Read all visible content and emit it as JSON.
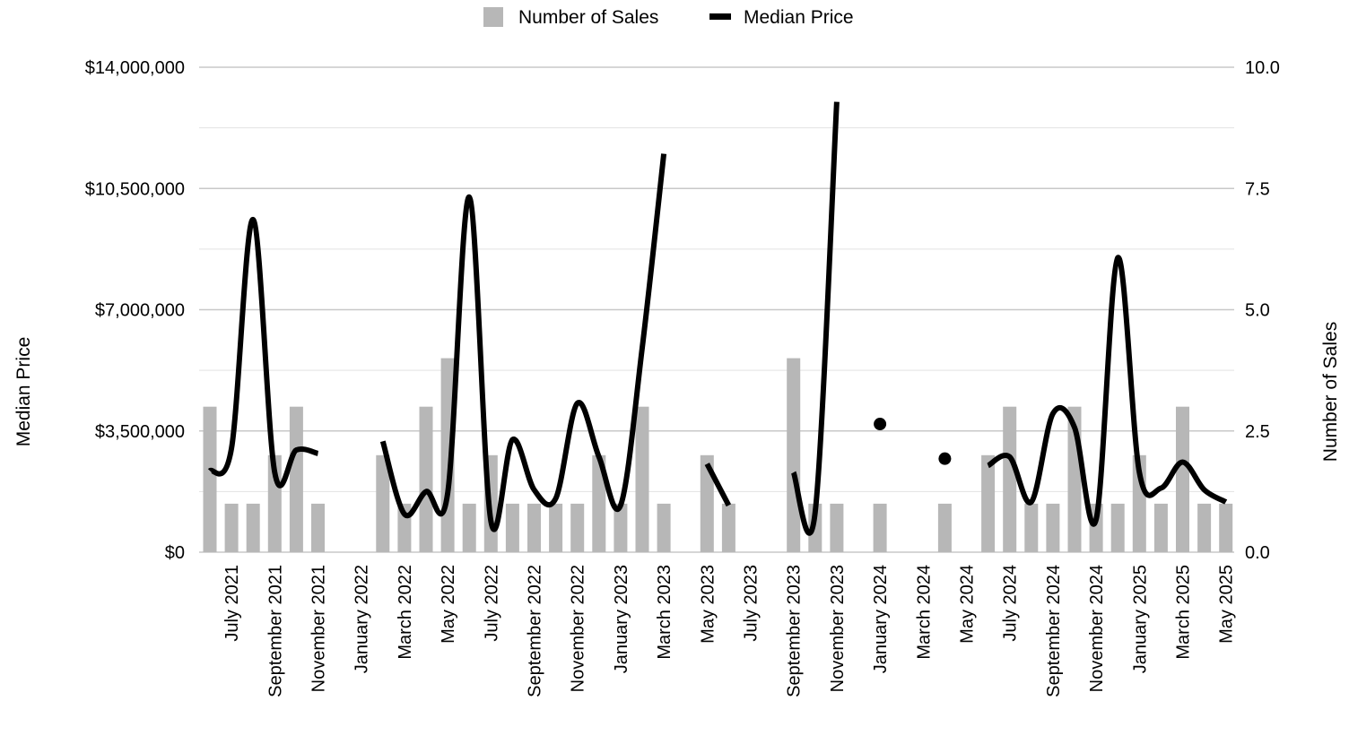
{
  "chart_data": {
    "type": "bar",
    "legend": {
      "placement": "top-center",
      "items": [
        {
          "label": "Number of Sales",
          "symbol": "square",
          "color": "#b7b7b7"
        },
        {
          "label": "Median Price",
          "symbol": "line",
          "color": "#000000"
        }
      ]
    },
    "y_left": {
      "label": "Median Price",
      "ylim": [
        0,
        14000000
      ],
      "tick_labels": [
        "$0",
        "$3,500,000",
        "$7,000,000",
        "$10,500,000",
        "$14,000,000"
      ]
    },
    "y_right": {
      "label": "Number of Sales",
      "ylim": [
        0,
        10
      ],
      "tick_labels": [
        "0.0",
        "2.5",
        "5.0",
        "7.5",
        "10.0"
      ]
    },
    "grid": true,
    "x_tick_labels": [
      "July  2021",
      "September  2021",
      "November 2021",
      "January 2022",
      "March 2022",
      "May 2022",
      "July 2022",
      "September  2022",
      "November 2022",
      "January 2023",
      "March 2023",
      "May 2023",
      "July 2023",
      "September 2023",
      "November 2023",
      "January 2024",
      "March 2024",
      "May 2024",
      "July 2024",
      "September 2024",
      "November 2024",
      "January 2025",
      "March 2025",
      "May 2025"
    ],
    "months": [
      "2021-06",
      "2021-07",
      "2021-08",
      "2021-09",
      "2021-10",
      "2021-11",
      "2021-12",
      "2022-01",
      "2022-02",
      "2022-03",
      "2022-04",
      "2022-05",
      "2022-06",
      "2022-07",
      "2022-08",
      "2022-09",
      "2022-10",
      "2022-11",
      "2022-12",
      "2023-01",
      "2023-02",
      "2023-03",
      "2023-04",
      "2023-05",
      "2023-06",
      "2023-07",
      "2023-08",
      "2023-09",
      "2023-10",
      "2023-11",
      "2023-12",
      "2024-01",
      "2024-02",
      "2024-03",
      "2024-04",
      "2024-05",
      "2024-06",
      "2024-07",
      "2024-08",
      "2024-09",
      "2024-10",
      "2024-11",
      "2024-12",
      "2025-01",
      "2025-02",
      "2025-03",
      "2025-04",
      "2025-05"
    ],
    "series": [
      {
        "name": "Number of Sales",
        "type": "bar",
        "axis": "right",
        "color": "#b7b7b7",
        "values": [
          3,
          1,
          1,
          2,
          3,
          1,
          0,
          0,
          2,
          1,
          3,
          4,
          1,
          2,
          1,
          1,
          1,
          1,
          2,
          1,
          3,
          1,
          0,
          2,
          1,
          0,
          0,
          4,
          1,
          1,
          0,
          1,
          0,
          0,
          1,
          0,
          2,
          3,
          1,
          1,
          3,
          1,
          1,
          2,
          1,
          3,
          1,
          1
        ]
      },
      {
        "name": "Median Price",
        "type": "line",
        "axis": "left",
        "color": "#000000",
        "smooth": true,
        "values": [
          2350000,
          3000000,
          9600000,
          2300000,
          2950000,
          2850000,
          null,
          null,
          3200000,
          1100000,
          1750000,
          1700000,
          10250000,
          900000,
          3250000,
          1800000,
          1550000,
          4300000,
          2750000,
          1350000,
          5900000,
          11500000,
          null,
          2550000,
          1350000,
          null,
          null,
          2300000,
          1150000,
          13000000,
          null,
          3700000,
          null,
          null,
          2700000,
          null,
          2500000,
          2750000,
          1450000,
          4000000,
          3600000,
          950000,
          8500000,
          2300000,
          1850000,
          2600000,
          1800000,
          1450000
        ]
      }
    ]
  }
}
